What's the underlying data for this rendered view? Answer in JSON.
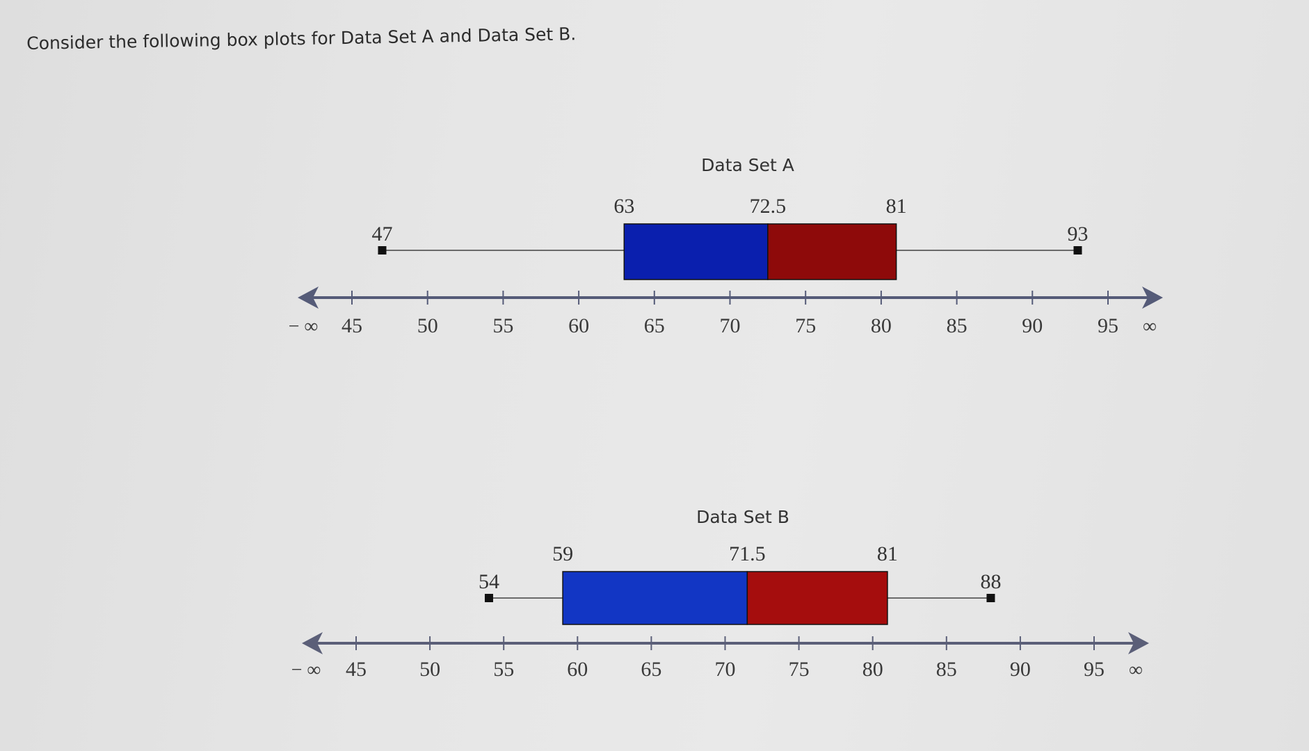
{
  "prompt": "Consider the following box plots for Data Set A and Data Set B.",
  "chart_data": [
    {
      "type": "box",
      "title": "Data Set A",
      "xlim": [
        45,
        95
      ],
      "ticks": [
        45,
        50,
        55,
        60,
        65,
        70,
        75,
        80,
        85,
        90,
        95
      ],
      "tick_labels": [
        "45",
        "50",
        "55",
        "60",
        "65",
        "70",
        "75",
        "80",
        "85",
        "90",
        "95"
      ],
      "left_end_label": "− ∞",
      "right_end_label": "∞",
      "five_number_summary": {
        "min": 47,
        "q1": 63,
        "median": 72.5,
        "q3": 81,
        "max": 93
      },
      "value_labels": {
        "min": "47",
        "q1": "63",
        "median": "72.5",
        "q3": "81",
        "max": "93"
      },
      "colors": {
        "lower_box": "#0a1fae",
        "upper_box": "#8e0a0a",
        "axis": "#555b78"
      }
    },
    {
      "type": "box",
      "title": "Data Set B",
      "xlim": [
        45,
        95
      ],
      "ticks": [
        45,
        50,
        55,
        60,
        65,
        70,
        75,
        80,
        85,
        90,
        95
      ],
      "tick_labels": [
        "45",
        "50",
        "55",
        "60",
        "65",
        "70",
        "75",
        "80",
        "85",
        "90",
        "95"
      ],
      "left_end_label": "− ∞",
      "right_end_label": "∞",
      "five_number_summary": {
        "min": 54,
        "q1": 59,
        "median": 71.5,
        "q3": 81,
        "max": 88
      },
      "value_labels": {
        "min": "54",
        "q1": "59",
        "median": "71.5",
        "q3": "81",
        "max": "88"
      },
      "colors": {
        "lower_box": "#1236c4",
        "upper_box": "#a50d0d",
        "axis": "#5b5f78"
      }
    }
  ]
}
